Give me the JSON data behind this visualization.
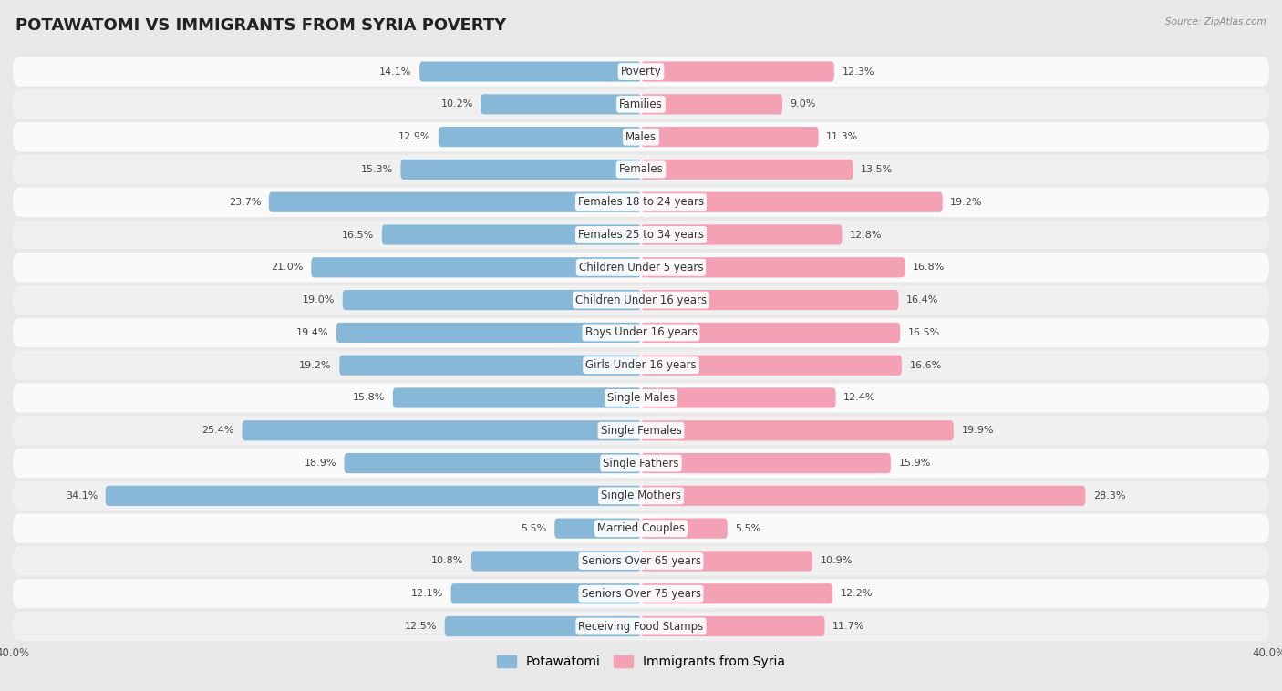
{
  "title": "POTAWATOMI VS IMMIGRANTS FROM SYRIA POVERTY",
  "source": "Source: ZipAtlas.com",
  "categories": [
    "Poverty",
    "Families",
    "Males",
    "Females",
    "Females 18 to 24 years",
    "Females 25 to 34 years",
    "Children Under 5 years",
    "Children Under 16 years",
    "Boys Under 16 years",
    "Girls Under 16 years",
    "Single Males",
    "Single Females",
    "Single Fathers",
    "Single Mothers",
    "Married Couples",
    "Seniors Over 65 years",
    "Seniors Over 75 years",
    "Receiving Food Stamps"
  ],
  "left_values": [
    14.1,
    10.2,
    12.9,
    15.3,
    23.7,
    16.5,
    21.0,
    19.0,
    19.4,
    19.2,
    15.8,
    25.4,
    18.9,
    34.1,
    5.5,
    10.8,
    12.1,
    12.5
  ],
  "right_values": [
    12.3,
    9.0,
    11.3,
    13.5,
    19.2,
    12.8,
    16.8,
    16.4,
    16.5,
    16.6,
    12.4,
    19.9,
    15.9,
    28.3,
    5.5,
    10.9,
    12.2,
    11.7
  ],
  "left_color": "#88B8D8",
  "right_color": "#F4A0B5",
  "axis_limit": 40.0,
  "left_label": "Potawatomi",
  "right_label": "Immigrants from Syria",
  "page_bg": "#e8e8e8",
  "row_bg_odd": "#f0f0f0",
  "row_bg_even": "#fafafa",
  "bar_height": 0.62,
  "title_fontsize": 13,
  "label_fontsize": 8.5,
  "value_fontsize": 8,
  "legend_fontsize": 10
}
